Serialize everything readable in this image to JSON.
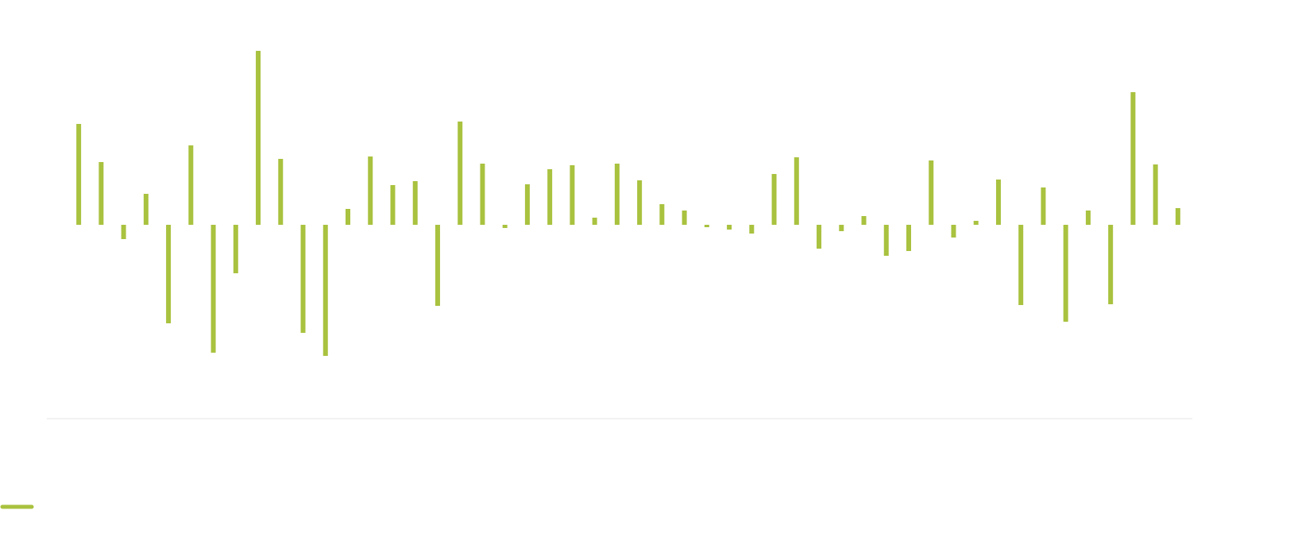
{
  "chart_data": {
    "type": "bar",
    "categories": [
      null,
      null,
      null,
      null,
      null,
      null,
      null,
      null,
      null,
      null,
      null,
      null,
      null,
      null,
      null,
      null,
      null,
      null,
      null,
      null,
      null,
      null,
      null,
      null,
      null,
      null,
      null,
      null,
      null,
      null,
      null,
      null,
      null,
      null,
      null,
      null,
      null,
      null,
      null,
      null,
      null,
      null,
      null,
      null,
      null,
      null,
      null,
      null,
      null,
      null
    ],
    "values": [
      12.7,
      7.9,
      -1.8,
      3.9,
      -12.4,
      10.0,
      -16.1,
      -6.1,
      21.9,
      8.3,
      -13.6,
      -16.5,
      2.0,
      8.6,
      5.0,
      5.5,
      -10.2,
      13.0,
      7.7,
      -0.4,
      5.1,
      7.0,
      7.5,
      0.9,
      7.7,
      5.6,
      2.6,
      1.8,
      -0.3,
      -0.6,
      -1.1,
      6.4,
      8.5,
      -3.0,
      -0.8,
      1.1,
      -3.9,
      -3.3,
      8.1,
      -1.6,
      0.5,
      5.7,
      -10.1,
      4.7,
      -12.2,
      1.8,
      -10.0,
      16.7,
      7.6,
      2.1
    ],
    "color": "#a9c23f",
    "ylim": [
      -24.4,
      28.3
    ]
  }
}
